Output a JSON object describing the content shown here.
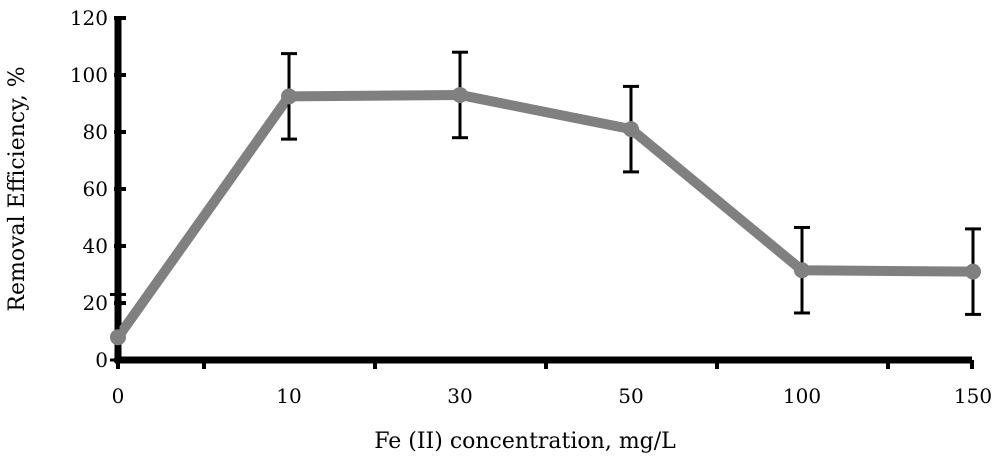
{
  "chart_data": {
    "type": "line",
    "title": "",
    "xlabel": "Fe (II) concentration, mg/L",
    "ylabel": "Removal Efficiency, %",
    "categories": [
      "0",
      "10",
      "30",
      "50",
      "100",
      "150"
    ],
    "ylim": [
      0,
      120
    ],
    "yticks": [
      0,
      20,
      40,
      60,
      80,
      100,
      120
    ],
    "grid": false,
    "legend": "none",
    "series": [
      {
        "values": [
          8,
          92.5,
          93,
          81,
          31.5,
          31
        ],
        "error": [
          15,
          15,
          15,
          15,
          15,
          15
        ],
        "color": "#808080"
      }
    ]
  }
}
